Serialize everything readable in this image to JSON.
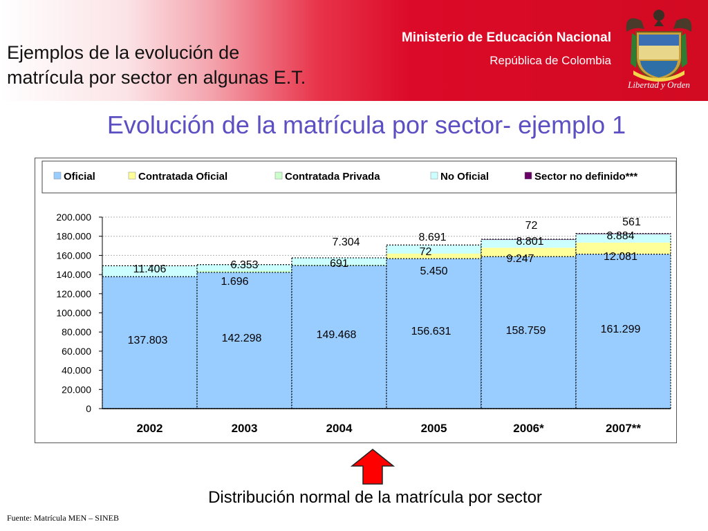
{
  "header": {
    "title_line1": "Ejemplos de la evolución de",
    "title_line2": "matrícula por sector en algunas E.T.",
    "ministry": "Ministerio de Educación Nacional",
    "country": "República de Colombia",
    "crest_motto": "Libertad y Orden",
    "crest_icon": "colombia-coat-of-arms-icon"
  },
  "chart_heading": "Evolución de la matrícula por sector- ejemplo 1",
  "chart_data": {
    "type": "bar",
    "stacked": true,
    "categories": [
      "2002",
      "2003",
      "2004",
      "2005",
      "2006*",
      "2007**"
    ],
    "series": [
      {
        "name": "Oficial",
        "color": "#99ccff",
        "values": [
          137803,
          142298,
          149468,
          156631,
          158759,
          161299
        ],
        "labels": [
          "137.803",
          "142.298",
          "149.468",
          "156.631",
          "158.759",
          "161.299"
        ]
      },
      {
        "name": "Contratada Oficial",
        "color": "#ffff99",
        "values": [
          0,
          0,
          0,
          5450,
          9247,
          12081
        ],
        "labels": [
          "",
          "",
          "",
          "5.450",
          "9.247",
          "12.081"
        ]
      },
      {
        "name": "Contratada Privada",
        "color": "#ccffcc",
        "values": [
          0,
          1696,
          691,
          72,
          0,
          0
        ],
        "labels": [
          "",
          "1.696",
          "691",
          "72",
          "",
          ""
        ]
      },
      {
        "name": "No Oficial",
        "color": "#ccffff",
        "values": [
          11406,
          6353,
          7304,
          8691,
          8801,
          8884
        ],
        "labels": [
          "11.406",
          "6.353",
          "7.304",
          "8.691",
          "8.801",
          "8.884"
        ]
      },
      {
        "name": "Sector no definido***",
        "color": "#660066",
        "values": [
          0,
          0,
          0,
          0,
          72,
          561
        ],
        "labels": [
          "",
          "",
          "",
          "",
          "72",
          "561"
        ]
      }
    ],
    "y_ticks": [
      "0",
      "20.000",
      "40.000",
      "60.000",
      "80.000",
      "100.000",
      "120.000",
      "140.000",
      "160.000",
      "180.000",
      "200.000"
    ],
    "ylim": [
      0,
      200000
    ],
    "grid": true,
    "legend_position": "top"
  },
  "note": "Distribución normal de la matrícula por sector",
  "source": "Fuente: Matrícula MEN – SINEB",
  "arrow": {
    "color": "#ff0000",
    "icon": "up-arrow-icon"
  }
}
